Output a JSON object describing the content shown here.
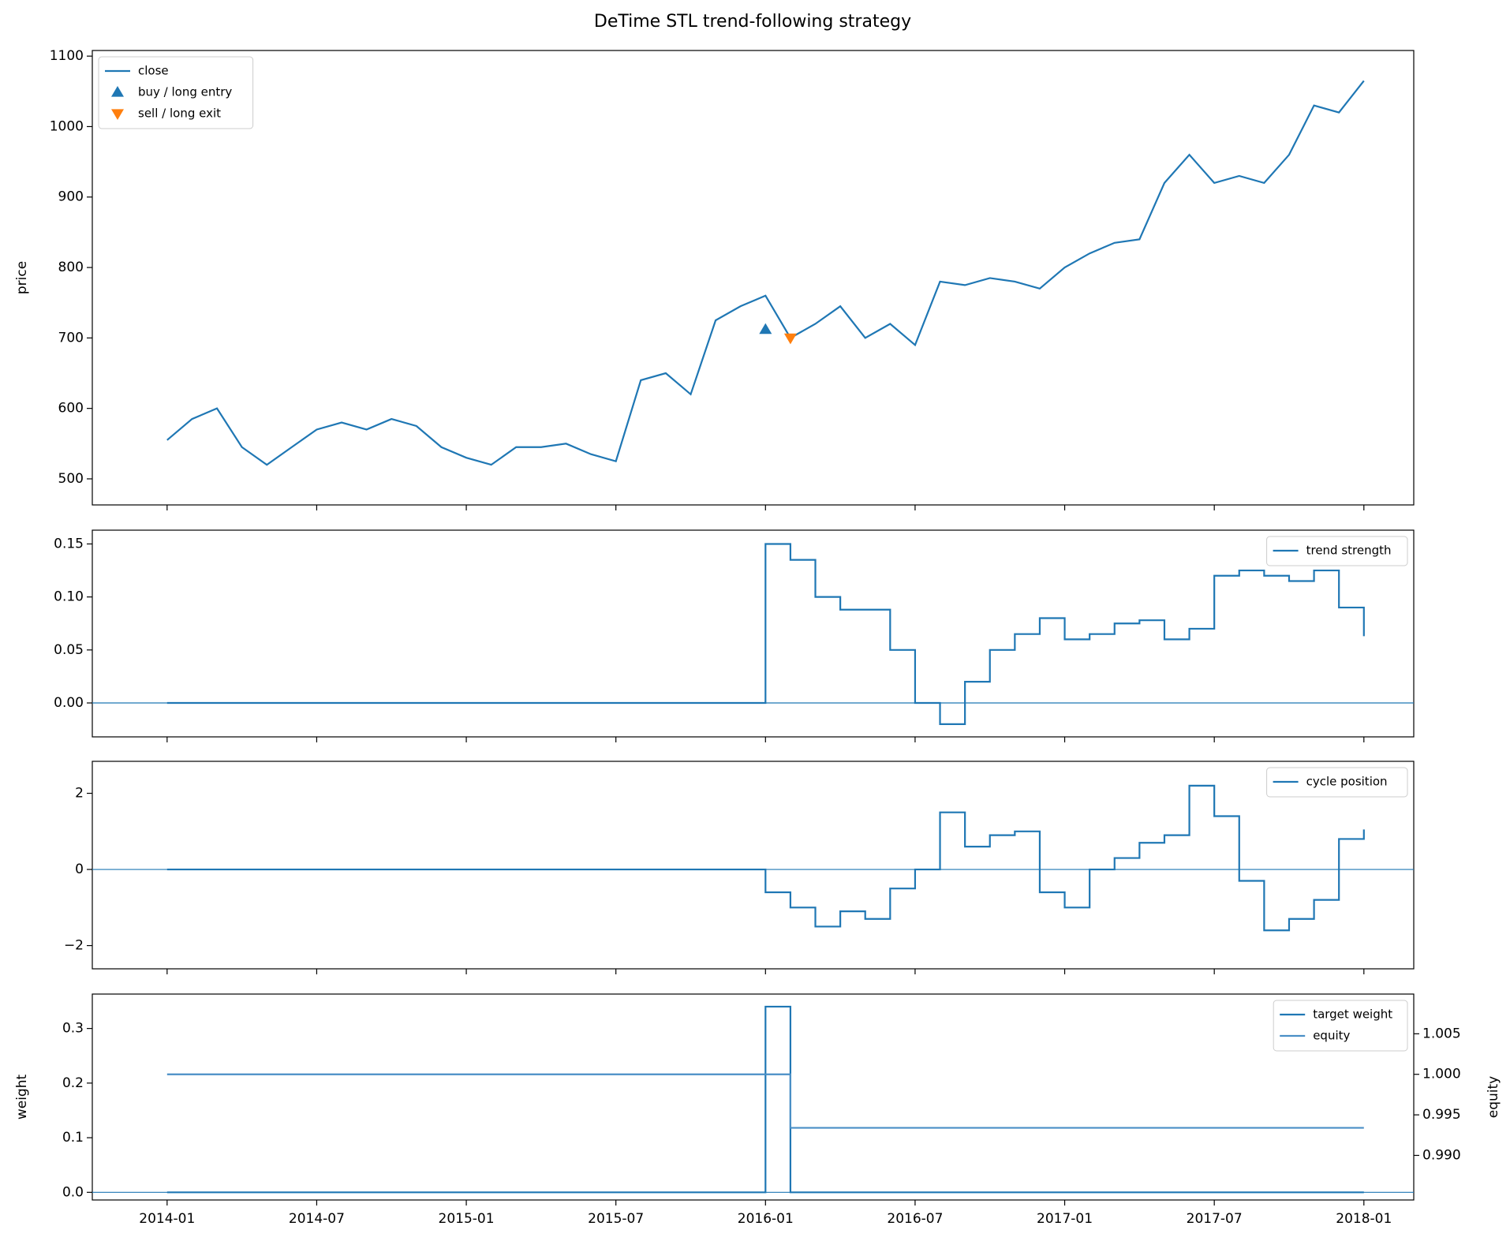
{
  "chart_data": [
    {
      "type": "line",
      "title": "DeTime STL trend-following strategy",
      "ylabel": "price",
      "x": [
        "2014-01",
        "2014-02",
        "2014-03",
        "2014-04",
        "2014-05",
        "2014-06",
        "2014-07",
        "2014-08",
        "2014-09",
        "2014-10",
        "2014-11",
        "2014-12",
        "2015-01",
        "2015-02",
        "2015-03",
        "2015-04",
        "2015-05",
        "2015-06",
        "2015-07",
        "2015-08",
        "2015-09",
        "2015-10",
        "2015-11",
        "2015-12",
        "2016-01",
        "2016-02",
        "2016-03",
        "2016-04",
        "2016-05",
        "2016-06",
        "2016-07",
        "2016-08",
        "2016-09",
        "2016-10",
        "2016-11",
        "2016-12",
        "2017-01",
        "2017-02",
        "2017-03",
        "2017-04",
        "2017-05",
        "2017-06",
        "2017-07",
        "2017-08",
        "2017-09",
        "2017-10",
        "2017-11",
        "2017-12",
        "2018-01"
      ],
      "series": [
        {
          "name": "close",
          "color": "#1f77b4",
          "values": [
            555,
            585,
            600,
            545,
            520,
            545,
            570,
            580,
            570,
            585,
            575,
            545,
            530,
            520,
            545,
            545,
            550,
            535,
            525,
            640,
            650,
            620,
            725,
            745,
            760,
            700,
            720,
            745,
            700,
            720,
            690,
            780,
            775,
            785,
            780,
            770,
            800,
            820,
            835,
            840,
            920,
            960,
            920,
            930,
            920,
            960,
            1030,
            1020,
            1065
          ]
        }
      ],
      "markers": [
        {
          "name": "buy / long entry",
          "color": "#1f77b4",
          "symbol": "triangle-up",
          "x": [
            "2016-01"
          ],
          "values": [
            712
          ]
        },
        {
          "name": "sell / long exit",
          "color": "#ff7f0e",
          "symbol": "triangle-down",
          "x": [
            "2016-02"
          ],
          "values": [
            700
          ]
        }
      ],
      "xlim": [
        "2013-10",
        "2018-03"
      ],
      "ylim": [
        463,
        1108
      ],
      "yticks": [
        500,
        600,
        700,
        800,
        900,
        1000,
        1100
      ],
      "legend": "upper left"
    },
    {
      "type": "line",
      "step": true,
      "x": [
        "2014-01",
        "2016-01",
        "2016-02",
        "2016-03",
        "2016-04",
        "2016-05",
        "2016-06",
        "2016-07",
        "2016-08",
        "2016-09",
        "2016-10",
        "2016-11",
        "2016-12",
        "2017-01",
        "2017-02",
        "2017-03",
        "2017-04",
        "2017-05",
        "2017-06",
        "2017-07",
        "2017-08",
        "2017-09",
        "2017-10",
        "2017-11",
        "2017-12",
        "2018-01"
      ],
      "series": [
        {
          "name": "trend strength",
          "color": "#1f77b4",
          "values": [
            0,
            0.15,
            0.135,
            0.1,
            0.088,
            0.088,
            0.05,
            0.0,
            -0.02,
            0.02,
            0.05,
            0.065,
            0.08,
            0.06,
            0.065,
            0.075,
            0.078,
            0.06,
            0.07,
            0.12,
            0.125,
            0.12,
            0.115,
            0.125,
            0.09,
            0.063
          ]
        }
      ],
      "reference_line": 0,
      "xlim": [
        "2013-10",
        "2018-03"
      ],
      "ylim": [
        -0.032,
        0.163
      ],
      "yticks": [
        {
          "value": 0,
          "label": "0.00"
        },
        0.05,
        {
          "value": 0.1,
          "label": "0.10"
        },
        0.15
      ],
      "legend": "upper right"
    },
    {
      "type": "line",
      "step": true,
      "x": [
        "2014-01",
        "2016-01",
        "2016-02",
        "2016-03",
        "2016-04",
        "2016-05",
        "2016-06",
        "2016-07",
        "2016-08",
        "2016-09",
        "2016-10",
        "2016-11",
        "2016-12",
        "2017-01",
        "2017-02",
        "2017-03",
        "2017-04",
        "2017-05",
        "2017-06",
        "2017-07",
        "2017-08",
        "2017-09",
        "2017-10",
        "2017-11",
        "2017-12",
        "2018-01"
      ],
      "series": [
        {
          "name": "cycle position",
          "color": "#1f77b4",
          "values": [
            0,
            -0.6,
            -1.0,
            -1.5,
            -1.1,
            -1.3,
            -0.5,
            0.0,
            1.5,
            0.6,
            0.9,
            1.0,
            -0.6,
            -1.0,
            0.0,
            0.3,
            0.7,
            0.9,
            2.2,
            1.4,
            -0.3,
            -1.6,
            -1.3,
            -0.8,
            0.8,
            1.05
          ]
        }
      ],
      "reference_line": 0,
      "xlim": [
        "2013-10",
        "2018-03"
      ],
      "ylim": [
        -2.61,
        2.84
      ],
      "yticks": [
        {
          "value": -2,
          "label": "−2"
        },
        0,
        2
      ],
      "legend": "upper right"
    },
    {
      "type": "line",
      "step": true,
      "ylabel": "weight",
      "y2label": "equity",
      "x": [
        "2014-01",
        "2016-01",
        "2016-02",
        "2018-01"
      ],
      "series": [
        {
          "name": "target weight",
          "color": "#1f77b4",
          "values": [
            0,
            0.34,
            0,
            0
          ]
        },
        {
          "name": "equity",
          "color": "#4a8fc6",
          "axis": "y2",
          "values": [
            1,
            1,
            0.9934,
            0.9934
          ]
        }
      ],
      "reference_line": 0,
      "xlim": [
        "2013-10",
        "2018-03"
      ],
      "ylim": [
        -0.014,
        0.363
      ],
      "yticks": [
        {
          "value": 0,
          "label": "0.0"
        },
        0.1,
        0.2,
        0.3
      ],
      "y2lim": [
        0.9845,
        1.0099
      ],
      "y2ticks": [
        {
          "value": 0.99,
          "label": "0.990"
        },
        0.995,
        {
          "value": 1,
          "label": "1.000"
        },
        1.005
      ],
      "xticks": [
        "2014-01",
        "2014-07",
        "2015-01",
        "2015-07",
        "2016-01",
        "2016-07",
        "2017-01",
        "2017-07",
        "2018-01"
      ],
      "legend": "upper right"
    }
  ]
}
